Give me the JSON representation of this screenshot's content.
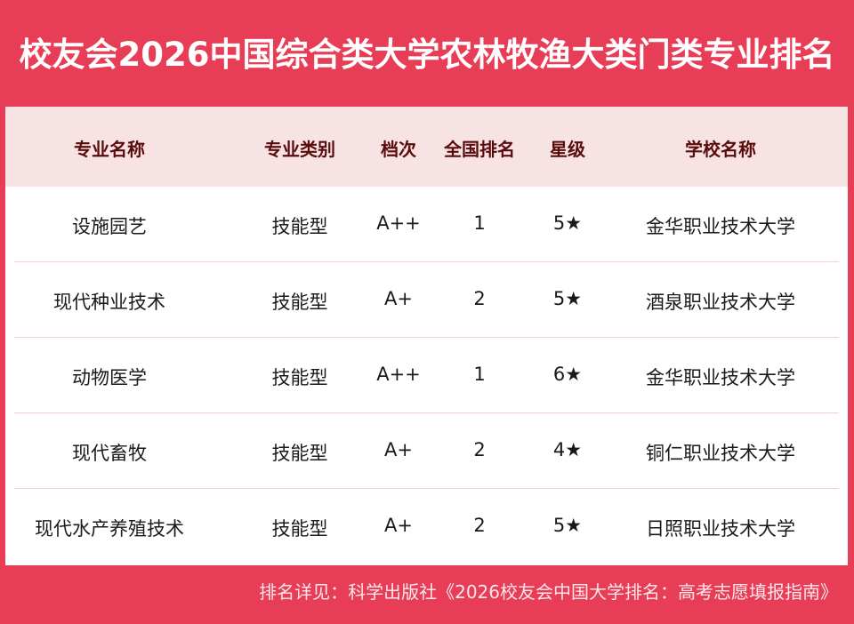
{
  "title": "校友会2026中国综合类大学农林牧渔大类门类专业排名",
  "headers": [
    "专业名称",
    "专业类别",
    "档次",
    "全国排名",
    "星级",
    "学校名称"
  ],
  "rows": [
    [
      "设施园艺",
      "技能型",
      "A++",
      "1",
      "5★",
      "金华职业技术大学"
    ],
    [
      "现代种业技术",
      "技能型",
      "A+",
      "2",
      "5★",
      "酒泉职业技术大学"
    ],
    [
      "动物医学",
      "技能型",
      "A++",
      "1",
      "6★",
      "金华职业技术大学"
    ],
    [
      "现代畜牧",
      "技能型",
      "A+",
      "2",
      "4★",
      "铜仁职业技术大学"
    ],
    [
      "现代水产养殖技术",
      "技能型",
      "A+",
      "2",
      "5★",
      "日照职业技术大学"
    ]
  ],
  "footer": "排名详见：科学出版社《2026校友会中国大学排名：高考志愿填报指南》",
  "colors": {
    "brand": "#e83d57",
    "header_bg": "#f8e3e4",
    "header_text": "#5a0c0c"
  }
}
